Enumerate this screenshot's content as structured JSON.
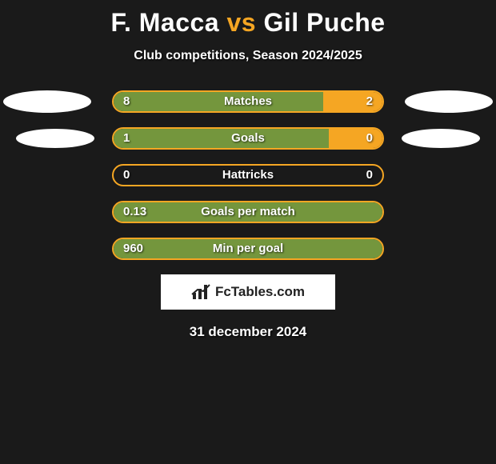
{
  "title": {
    "player1": "F. Macca",
    "vs": "vs",
    "player2": "Gil Puche",
    "player1_color": "#ffffff",
    "vs_color": "#f5a623",
    "player2_color": "#ffffff"
  },
  "subtitle": "Club competitions, Season 2024/2025",
  "colors": {
    "background": "#1a1a1a",
    "left_fill": "#74963d",
    "right_fill": "#f5a623",
    "border": "#f5a623",
    "ellipse": "#ffffff",
    "text": "#ffffff"
  },
  "stats": [
    {
      "label": "Matches",
      "left_value": "8",
      "right_value": "2",
      "left_pct": 78,
      "right_pct": 22,
      "show_ellipses": true
    },
    {
      "label": "Goals",
      "left_value": "1",
      "right_value": "0",
      "left_pct": 80,
      "right_pct": 20,
      "show_ellipses": true,
      "ellipse_shrink": true
    },
    {
      "label": "Hattricks",
      "left_value": "0",
      "right_value": "0",
      "left_pct": 0,
      "right_pct": 0,
      "show_ellipses": false
    },
    {
      "label": "Goals per match",
      "left_value": "0.13",
      "right_value": "",
      "left_pct": 100,
      "right_pct": 0,
      "show_ellipses": false
    },
    {
      "label": "Min per goal",
      "left_value": "960",
      "right_value": "",
      "left_pct": 100,
      "right_pct": 0,
      "show_ellipses": false
    }
  ],
  "attribution": "FcTables.com",
  "date": "31 december 2024"
}
